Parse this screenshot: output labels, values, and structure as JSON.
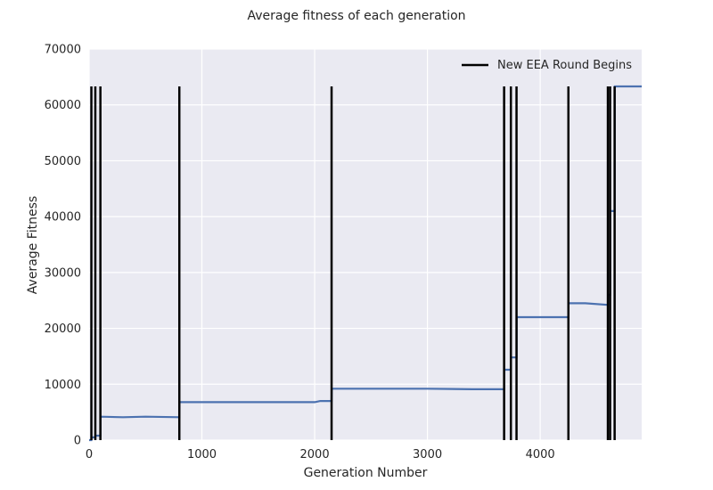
{
  "chart_data": {
    "type": "line",
    "title": "Average fitness of each generation",
    "xlabel": "Generation Number",
    "ylabel": "Average Fitness",
    "xlim": [
      0,
      4900
    ],
    "ylim": [
      0,
      70000
    ],
    "xticks": [
      0,
      1000,
      2000,
      3000,
      4000
    ],
    "yticks": [
      0,
      10000,
      20000,
      30000,
      40000,
      50000,
      60000,
      70000
    ],
    "grid": true,
    "legend": {
      "placement": "top-right",
      "entries": [
        "New EEA Round Begins"
      ]
    },
    "colors": {
      "fitness_line": "#4c72b0",
      "round_markers": "#000000",
      "background": "#eaeaf2",
      "grid": "#ffffff"
    },
    "series": [
      {
        "x": [
          0,
          20,
          21,
          55,
          56,
          100,
          101,
          300,
          500,
          800,
          801,
          1200,
          1600,
          2000,
          2050,
          2100,
          2150,
          2151,
          2600,
          3000,
          3400,
          3680,
          3681,
          3740,
          3741,
          3790,
          3791,
          4000,
          4250,
          4251,
          4400,
          4600,
          4601,
          4620,
          4621,
          4660,
          4661,
          4900
        ],
        "y": [
          0,
          0,
          500,
          500,
          800,
          800,
          4200,
          4100,
          4200,
          4100,
          6800,
          6800,
          6800,
          6800,
          7000,
          7000,
          7000,
          9200,
          9200,
          9200,
          9100,
          9100,
          12600,
          12600,
          14800,
          14800,
          22000,
          22000,
          22000,
          24500,
          24500,
          24200,
          26000,
          26000,
          41000,
          41000,
          63300,
          63300
        ]
      },
      {
        "name": "New EEA Round Begins",
        "type": "vlines",
        "x": [
          20,
          55,
          100,
          800,
          2150,
          3680,
          3740,
          3790,
          4250,
          4600,
          4620,
          4660
        ],
        "ymin": 0,
        "ymax": 63300
      }
    ]
  }
}
